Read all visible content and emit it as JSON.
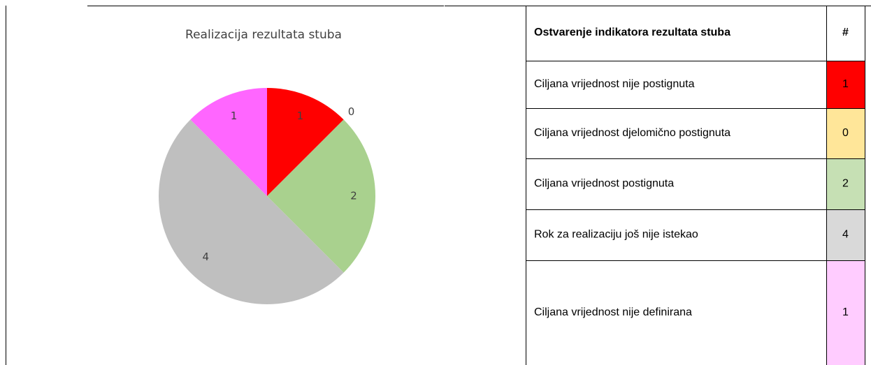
{
  "chart_data": {
    "type": "pie",
    "title": "Realizacija rezultata stuba",
    "categories": [
      "Ciljana vrijednost nije postignuta",
      "Ciljana vrijednost djelomično postignuta",
      "Ciljana vrijednost postignuta",
      "Rok za realizaciju još nije istekao",
      "Ciljana vrijednost nije definirana"
    ],
    "values": [
      1,
      0,
      2,
      4,
      1
    ],
    "colors": [
      "#ff0000",
      "#ffd966",
      "#a9d18e",
      "#bfbfbf",
      "#ff66ff"
    ]
  },
  "table": {
    "header": [
      "Ostvarenje indikatora rezultata stuba",
      "#"
    ],
    "cell_colors": [
      "#ff0000",
      "#ffe699",
      "#c6e0b4",
      "#d9d9d9",
      "#ffccff"
    ]
  }
}
